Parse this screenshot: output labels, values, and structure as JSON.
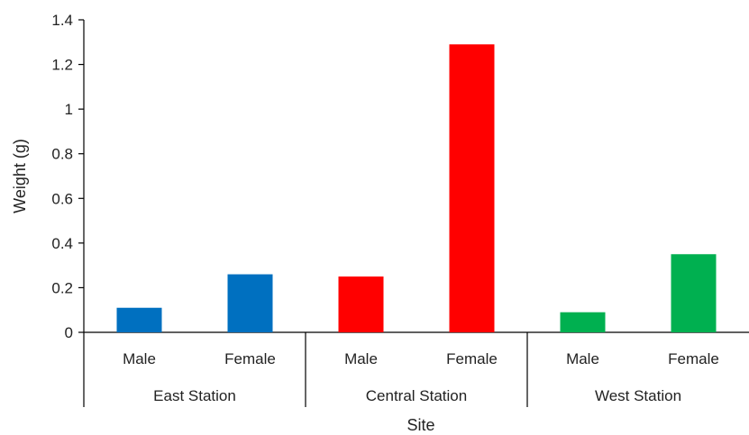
{
  "chart_data": {
    "type": "bar",
    "ylabel": "Weight (g)",
    "xlabel": "Site",
    "ylim": [
      0,
      1.4
    ],
    "yticks": [
      "0",
      "0.2",
      "0.4",
      "0.6",
      "0.8",
      "1",
      "1.2",
      "1.4"
    ],
    "grid": false,
    "legend": "none",
    "groups": [
      {
        "name": "East Station",
        "color": "#0070C0",
        "bars": [
          {
            "category": "Male",
            "value": 0.11
          },
          {
            "category": "Female",
            "value": 0.26
          }
        ]
      },
      {
        "name": "Central Station",
        "color": "#FF0000",
        "bars": [
          {
            "category": "Male",
            "value": 0.25
          },
          {
            "category": "Female",
            "value": 1.29
          }
        ]
      },
      {
        "name": "West Station",
        "color": "#00B050",
        "bars": [
          {
            "category": "Male",
            "value": 0.09
          },
          {
            "category": "Female",
            "value": 0.35
          }
        ]
      }
    ]
  }
}
